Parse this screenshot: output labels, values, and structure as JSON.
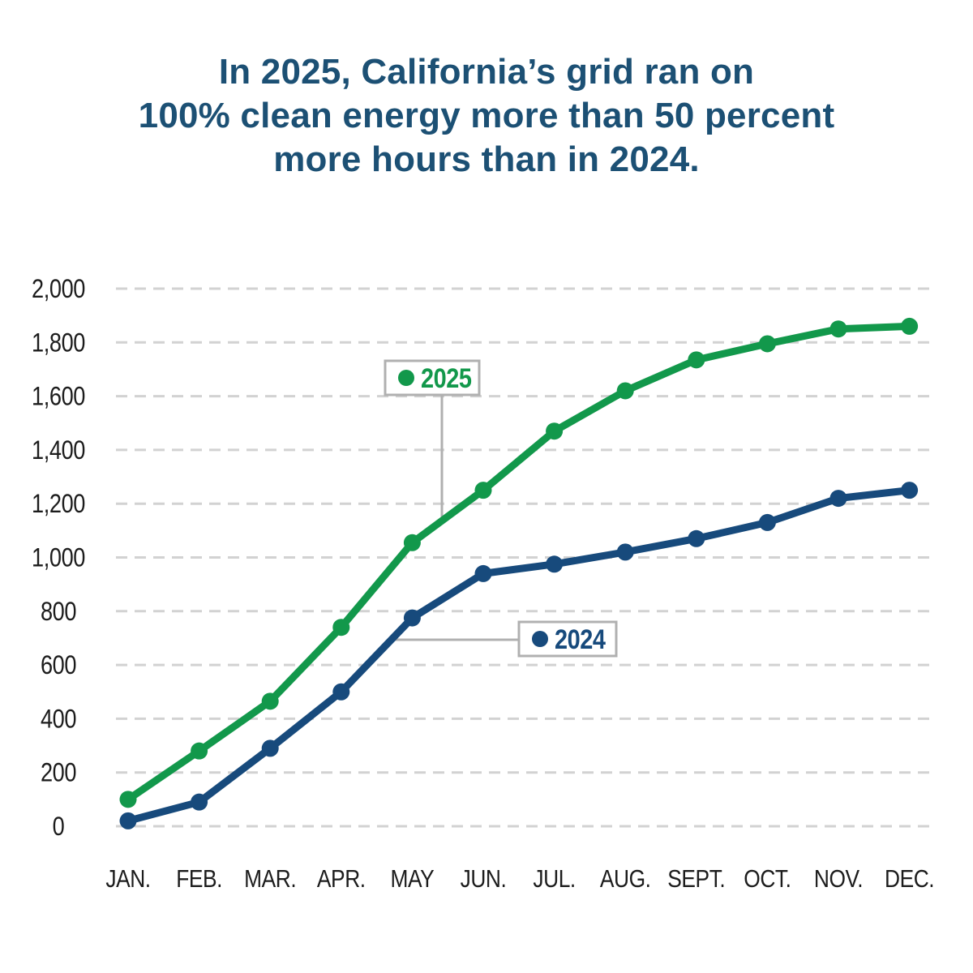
{
  "title": {
    "line1": "In 2025, California’s grid ran on",
    "line2": "100% clean energy more than 50 percent",
    "line3": "more hours than in 2024."
  },
  "colors": {
    "background": "#FFFFFF",
    "title_text": "#1C5074",
    "green_2025": "#12984B",
    "navy_2024": "#174A7C",
    "gridline": "#D2D2D2",
    "axis_text": "#1C1C1C",
    "legend_border": "#B0B0B0",
    "legend_bg": "#FFFFFF"
  },
  "chart_data": {
    "type": "line",
    "title": "",
    "xlabel": "",
    "ylabel": "",
    "categories": [
      "JAN.",
      "FEB.",
      "MAR.",
      "APR.",
      "MAY",
      "JUN.",
      "JUL.",
      "AUG.",
      "SEPT.",
      "OCT.",
      "NOV.",
      "DEC."
    ],
    "series": [
      {
        "name": "2025",
        "color": "#12984B",
        "values": [
          100,
          280,
          465,
          740,
          1055,
          1250,
          1470,
          1620,
          1735,
          1795,
          1850,
          1860
        ]
      },
      {
        "name": "2024",
        "color": "#174A7C",
        "values": [
          20,
          90,
          290,
          500,
          775,
          940,
          975,
          1020,
          1070,
          1130,
          1220,
          1250
        ]
      }
    ],
    "ylim": [
      0,
      2000
    ],
    "ytick_step": 200,
    "ytick_labels": [
      "0",
      "200",
      "400",
      "600",
      "800",
      "1,000",
      "1,200",
      "1,400",
      "1,600",
      "1,800",
      "2,000"
    ],
    "grid": "horizontal-dashed",
    "legend_position": "inline-callout-boxes"
  }
}
